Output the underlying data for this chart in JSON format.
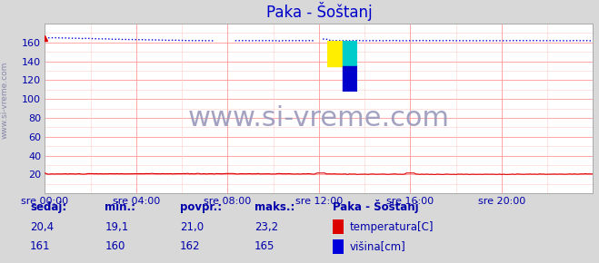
{
  "title": "Paka - Šoštanj",
  "bg_color": "#d8d8d8",
  "plot_bg_color": "#ffffff",
  "grid_color_major": "#ff9999",
  "grid_color_minor": "#ffcccc",
  "ylim": [
    0,
    180
  ],
  "yticks": [
    20,
    40,
    60,
    80,
    100,
    120,
    140,
    160
  ],
  "xlim": [
    0,
    288
  ],
  "xtick_positions": [
    0,
    48,
    96,
    144,
    192,
    240
  ],
  "xtick_labels": [
    "sre 00:00",
    "sre 04:00",
    "sre 08:00",
    "sre 12:00",
    "sre 16:00",
    "sre 20:00"
  ],
  "temp_color": "#dd0000",
  "height_color": "#0000dd",
  "watermark_text": "www.si-vreme.com",
  "watermark_color": "#9999bb",
  "watermark_fontsize": 22,
  "sidebar_text": "www.si-vreme.com",
  "sidebar_color": "#8888aa",
  "title_color": "#0000cc",
  "title_fontsize": 12,
  "axis_label_color": "#0000aa",
  "axis_label_fontsize": 8,
  "legend_title": "Paka - Šoštanj",
  "legend_items": [
    {
      "label": "temperatura[C]",
      "color": "#dd0000"
    },
    {
      "label": "višina[cm]",
      "color": "#0000dd"
    }
  ],
  "stats_headers": [
    "sedaj:",
    "min.:",
    "povpr.:",
    "maks.:"
  ],
  "stats_temp": [
    "20,4",
    "19,1",
    "21,0",
    "23,2"
  ],
  "stats_height": [
    "161",
    "160",
    "162",
    "165"
  ],
  "logo_colors": [
    "#ffee00",
    "#00cccc",
    "#0000cc"
  ]
}
